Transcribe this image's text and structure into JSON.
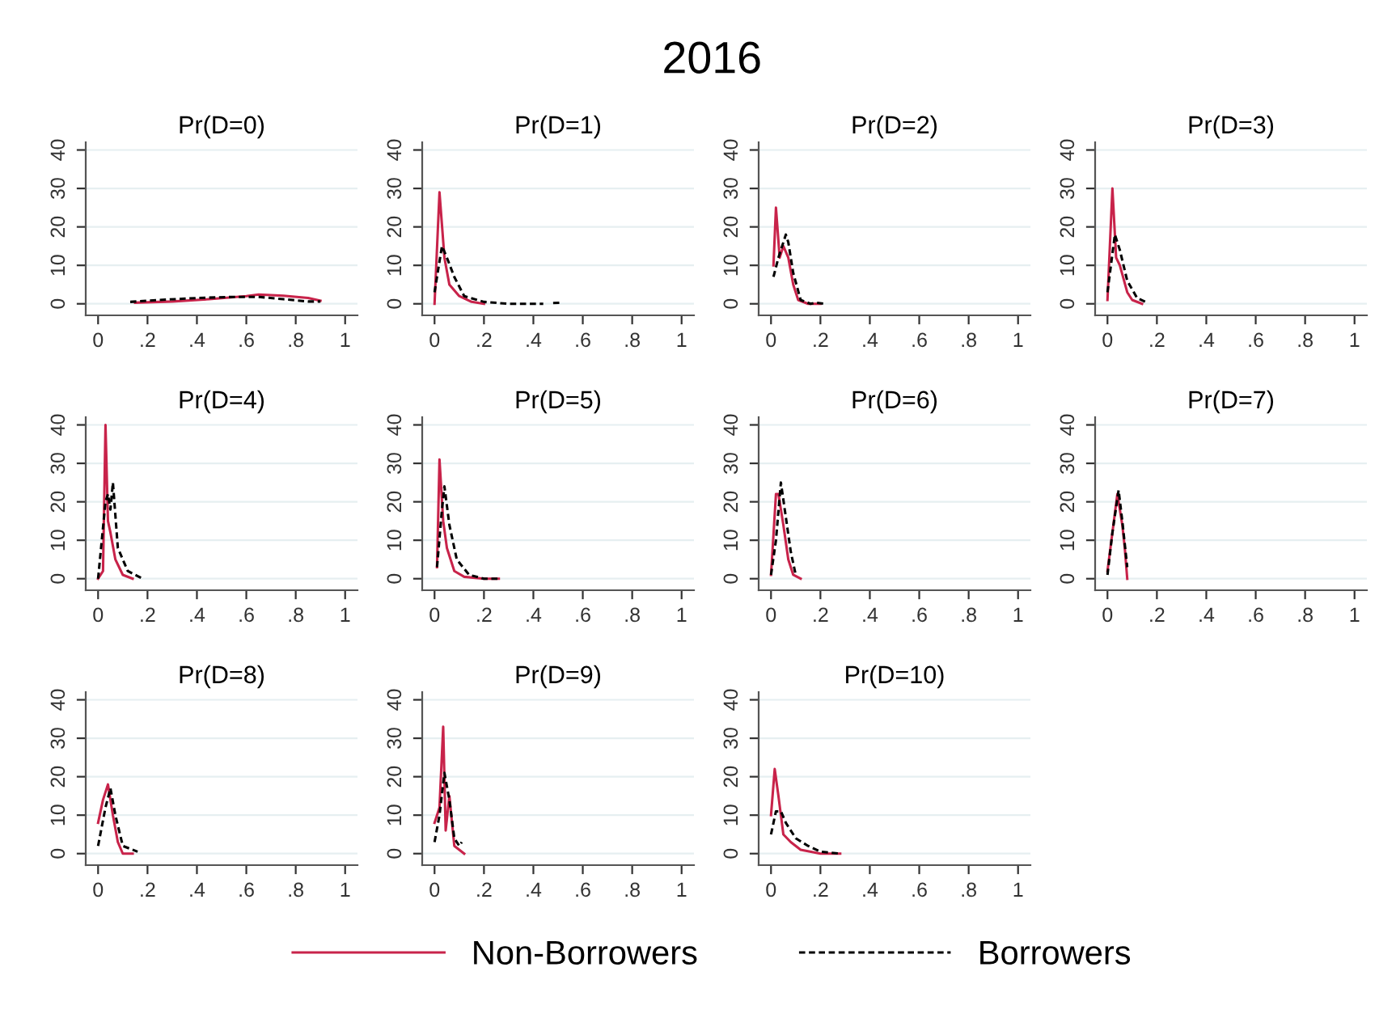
{
  "chart_data": [
    {
      "type": "line",
      "title": "Pr(D=0)",
      "annotations": [
        "2016"
      ],
      "legend": "bottom",
      "xlim": [
        -0.05,
        1.05
      ],
      "ylim": [
        -3,
        42
      ],
      "xticks": [
        0,
        {
          "value": 0.2,
          "label": ".2"
        },
        {
          "value": 0.4,
          "label": ".4"
        },
        {
          "value": 0.6,
          "label": ".6"
        },
        {
          "value": 0.8,
          "label": ".8"
        },
        1
      ],
      "yticks": [
        0,
        10,
        20,
        30,
        40
      ],
      "grid": "y",
      "series": [
        {
          "name": "Non-Borrowers",
          "color": "#c8234a",
          "line_style": "solid",
          "x": [
            0.15,
            0.3,
            0.45,
            0.6,
            0.65,
            0.75,
            0.85,
            0.9
          ],
          "values": [
            0.3,
            0.6,
            1.2,
            2,
            2.4,
            2.1,
            1.5,
            0.8
          ]
        },
        {
          "name": "Borrowers",
          "color": "#000000",
          "line_style": "dashed",
          "x": [
            0.13,
            0.25,
            0.4,
            0.55,
            0.65,
            0.75,
            0.85,
            0.9
          ],
          "values": [
            0.5,
            1.0,
            1.5,
            1.8,
            1.8,
            1.2,
            0.6,
            0.6
          ]
        }
      ]
    },
    {
      "type": "line",
      "title": "Pr(D=1)",
      "xlim": [
        -0.05,
        1.05
      ],
      "ylim": [
        -3,
        42
      ],
      "xticks": [
        0,
        {
          "value": 0.2,
          "label": ".2"
        },
        {
          "value": 0.4,
          "label": ".4"
        },
        {
          "value": 0.6,
          "label": ".6"
        },
        {
          "value": 0.8,
          "label": ".8"
        },
        1
      ],
      "yticks": [
        0,
        10,
        20,
        30,
        40
      ],
      "grid": "y",
      "series": [
        {
          "color": "#c8234a",
          "line_style": "solid",
          "x": [
            0,
            0.02,
            0.04,
            0.06,
            0.1,
            0.15,
            0.2
          ],
          "values": [
            0,
            29,
            12,
            5,
            2,
            0.5,
            0
          ]
        },
        {
          "color": "#000000",
          "line_style": "dashed",
          "x": [
            0,
            0.03,
            0.05,
            0.08,
            0.12,
            0.2,
            0.3,
            0.44,
            0.46,
            0.48,
            0.52
          ],
          "values": [
            3,
            15,
            12,
            7,
            2,
            0.5,
            0,
            0,
            null,
            0.2,
            0.3
          ]
        }
      ]
    },
    {
      "type": "line",
      "title": "Pr(D=2)",
      "xlim": [
        -0.05,
        1.05
      ],
      "ylim": [
        -3,
        42
      ],
      "xticks": [
        0,
        {
          "value": 0.2,
          "label": ".2"
        },
        {
          "value": 0.4,
          "label": ".4"
        },
        {
          "value": 0.6,
          "label": ".6"
        },
        {
          "value": 0.8,
          "label": ".8"
        },
        1
      ],
      "yticks": [
        0,
        10,
        20,
        30,
        40
      ],
      "grid": "y",
      "series": [
        {
          "color": "#c8234a",
          "line_style": "solid",
          "x": [
            0.01,
            0.02,
            0.035,
            0.05,
            0.07,
            0.09,
            0.11,
            0.15,
            0.2
          ],
          "values": [
            10,
            25,
            12,
            15,
            12,
            5,
            1,
            0,
            0
          ]
        },
        {
          "color": "#000000",
          "line_style": "dashed",
          "x": [
            0.01,
            0.03,
            0.06,
            0.07,
            0.09,
            0.12,
            0.16,
            0.18,
            0.22
          ],
          "values": [
            7,
            12,
            18,
            16,
            8,
            1,
            0,
            0.3,
            0
          ]
        }
      ]
    },
    {
      "type": "line",
      "title": "Pr(D=3)",
      "xlim": [
        -0.05,
        1.05
      ],
      "ylim": [
        -3,
        42
      ],
      "xticks": [
        0,
        {
          "value": 0.2,
          "label": ".2"
        },
        {
          "value": 0.4,
          "label": ".4"
        },
        {
          "value": 0.6,
          "label": ".6"
        },
        {
          "value": 0.8,
          "label": ".8"
        },
        1
      ],
      "yticks": [
        0,
        10,
        20,
        30,
        40
      ],
      "grid": "y",
      "series": [
        {
          "color": "#c8234a",
          "line_style": "solid",
          "x": [
            0,
            0.02,
            0.035,
            0.05,
            0.08,
            0.1,
            0.14
          ],
          "values": [
            1,
            30,
            12,
            10,
            3,
            1,
            0
          ]
        },
        {
          "color": "#000000",
          "line_style": "dashed",
          "x": [
            0,
            0.03,
            0.05,
            0.08,
            0.12,
            0.16
          ],
          "values": [
            3,
            18,
            14,
            6,
            1.5,
            0.3
          ]
        }
      ]
    },
    {
      "type": "line",
      "title": "Pr(D=4)",
      "xlim": [
        -0.05,
        1.05
      ],
      "ylim": [
        -3,
        42
      ],
      "xticks": [
        0,
        {
          "value": 0.2,
          "label": ".2"
        },
        {
          "value": 0.4,
          "label": ".4"
        },
        {
          "value": 0.6,
          "label": ".6"
        },
        {
          "value": 0.8,
          "label": ".8"
        },
        1
      ],
      "yticks": [
        0,
        10,
        20,
        30,
        40
      ],
      "grid": "y",
      "series": [
        {
          "color": "#c8234a",
          "line_style": "solid",
          "x": [
            0,
            0.02,
            0.03,
            0.04,
            0.05,
            0.07,
            0.1,
            0.14
          ],
          "values": [
            0,
            2,
            40,
            15,
            12,
            5,
            1,
            0
          ]
        },
        {
          "color": "#000000",
          "line_style": "dashed",
          "x": [
            0,
            0.03,
            0.04,
            0.05,
            0.06,
            0.08,
            0.12,
            0.18
          ],
          "values": [
            0,
            20,
            22,
            18,
            25,
            8,
            2,
            0
          ]
        }
      ]
    },
    {
      "type": "line",
      "title": "Pr(D=5)",
      "xlim": [
        -0.05,
        1.05
      ],
      "ylim": [
        -3,
        42
      ],
      "xticks": [
        0,
        {
          "value": 0.2,
          "label": ".2"
        },
        {
          "value": 0.4,
          "label": ".4"
        },
        {
          "value": 0.6,
          "label": ".6"
        },
        {
          "value": 0.8,
          "label": ".8"
        },
        1
      ],
      "yticks": [
        0,
        10,
        20,
        30,
        40
      ],
      "grid": "y",
      "series": [
        {
          "color": "#c8234a",
          "line_style": "solid",
          "x": [
            0.01,
            0.02,
            0.035,
            0.05,
            0.08,
            0.12,
            0.2,
            0.26
          ],
          "values": [
            3,
            31,
            15,
            8,
            2,
            0.5,
            0,
            0
          ]
        },
        {
          "color": "#000000",
          "line_style": "dashed",
          "x": [
            0.01,
            0.03,
            0.04,
            0.06,
            0.09,
            0.14,
            0.2,
            0.26
          ],
          "values": [
            3,
            18,
            24,
            14,
            5,
            1,
            0,
            0
          ]
        }
      ]
    },
    {
      "type": "line",
      "title": "Pr(D=6)",
      "xlim": [
        -0.05,
        1.05
      ],
      "ylim": [
        -3,
        42
      ],
      "xticks": [
        0,
        {
          "value": 0.2,
          "label": ".2"
        },
        {
          "value": 0.4,
          "label": ".4"
        },
        {
          "value": 0.6,
          "label": ".6"
        },
        {
          "value": 0.8,
          "label": ".8"
        },
        1
      ],
      "yticks": [
        0,
        10,
        20,
        30,
        40
      ],
      "grid": "y",
      "series": [
        {
          "color": "#c8234a",
          "line_style": "solid",
          "x": [
            0,
            0.02,
            0.03,
            0.05,
            0.07,
            0.09,
            0.12
          ],
          "values": [
            1,
            22,
            22,
            14,
            5,
            1,
            0
          ]
        },
        {
          "color": "#000000",
          "line_style": "dashed",
          "x": [
            0,
            0.02,
            0.04,
            0.06,
            0.08,
            0.1
          ],
          "values": [
            1,
            10,
            25,
            16,
            7,
            1
          ]
        }
      ]
    },
    {
      "type": "line",
      "title": "Pr(D=7)",
      "xlim": [
        -0.05,
        1.05
      ],
      "ylim": [
        -3,
        42
      ],
      "xticks": [
        0,
        {
          "value": 0.2,
          "label": ".2"
        },
        {
          "value": 0.4,
          "label": ".4"
        },
        {
          "value": 0.6,
          "label": ".6"
        },
        {
          "value": 0.8,
          "label": ".8"
        },
        1
      ],
      "yticks": [
        0,
        10,
        20,
        30,
        40
      ],
      "grid": "y",
      "series": [
        {
          "color": "#c8234a",
          "line_style": "solid",
          "x": [
            0,
            0.02,
            0.04,
            0.06,
            0.07,
            0.08
          ],
          "values": [
            2,
            12,
            22,
            14,
            8,
            0
          ]
        },
        {
          "color": "#000000",
          "line_style": "dashed",
          "x": [
            0,
            0.02,
            0.045,
            0.06,
            0.08
          ],
          "values": [
            1,
            12,
            23,
            15,
            3
          ]
        }
      ]
    },
    {
      "type": "line",
      "title": "Pr(D=8)",
      "xlim": [
        -0.05,
        1.05
      ],
      "ylim": [
        -3,
        42
      ],
      "xticks": [
        0,
        {
          "value": 0.2,
          "label": ".2"
        },
        {
          "value": 0.4,
          "label": ".4"
        },
        {
          "value": 0.6,
          "label": ".6"
        },
        {
          "value": 0.8,
          "label": ".8"
        },
        1
      ],
      "yticks": [
        0,
        10,
        20,
        30,
        40
      ],
      "grid": "y",
      "series": [
        {
          "color": "#c8234a",
          "line_style": "solid",
          "x": [
            0,
            0.02,
            0.04,
            0.06,
            0.08,
            0.1,
            0.14
          ],
          "values": [
            8,
            14,
            18,
            10,
            3,
            0,
            0
          ]
        },
        {
          "color": "#000000",
          "line_style": "dashed",
          "x": [
            0,
            0.03,
            0.05,
            0.07,
            0.1,
            0.16
          ],
          "values": [
            2,
            12,
            17,
            10,
            2,
            0.5
          ]
        }
      ]
    },
    {
      "type": "line",
      "title": "Pr(D=9)",
      "xlim": [
        -0.05,
        1.05
      ],
      "ylim": [
        -3,
        42
      ],
      "xticks": [
        0,
        {
          "value": 0.2,
          "label": ".2"
        },
        {
          "value": 0.4,
          "label": ".4"
        },
        {
          "value": 0.6,
          "label": ".6"
        },
        {
          "value": 0.8,
          "label": ".8"
        },
        1
      ],
      "yticks": [
        0,
        10,
        20,
        30,
        40
      ],
      "grid": "y",
      "series": [
        {
          "color": "#c8234a",
          "line_style": "solid",
          "x": [
            0,
            0.02,
            0.035,
            0.045,
            0.06,
            0.08,
            0.1,
            0.12
          ],
          "values": [
            8,
            12,
            33,
            6,
            15,
            2,
            1,
            0
          ]
        },
        {
          "color": "#000000",
          "line_style": "dashed",
          "x": [
            0,
            0.02,
            0.04,
            0.06,
            0.08,
            0.1,
            0.11
          ],
          "values": [
            3,
            10,
            21,
            14,
            4,
            2,
            3
          ]
        }
      ]
    },
    {
      "type": "line",
      "title": "Pr(D=10)",
      "xlim": [
        -0.05,
        1.05
      ],
      "ylim": [
        -3,
        42
      ],
      "xticks": [
        0,
        {
          "value": 0.2,
          "label": ".2"
        },
        {
          "value": 0.4,
          "label": ".4"
        },
        {
          "value": 0.6,
          "label": ".6"
        },
        {
          "value": 0.8,
          "label": ".8"
        },
        1
      ],
      "yticks": [
        0,
        10,
        20,
        30,
        40
      ],
      "grid": "y",
      "series": [
        {
          "color": "#c8234a",
          "line_style": "solid",
          "x": [
            0,
            0.015,
            0.03,
            0.05,
            0.08,
            0.12,
            0.2,
            0.28
          ],
          "values": [
            10,
            22,
            15,
            5,
            3,
            1,
            0,
            0
          ]
        },
        {
          "color": "#000000",
          "line_style": "dashed",
          "x": [
            0,
            0.02,
            0.04,
            0.06,
            0.1,
            0.15,
            0.2,
            0.28
          ],
          "values": [
            5,
            11,
            11,
            8,
            4,
            2,
            0.5,
            0
          ]
        }
      ]
    }
  ]
}
